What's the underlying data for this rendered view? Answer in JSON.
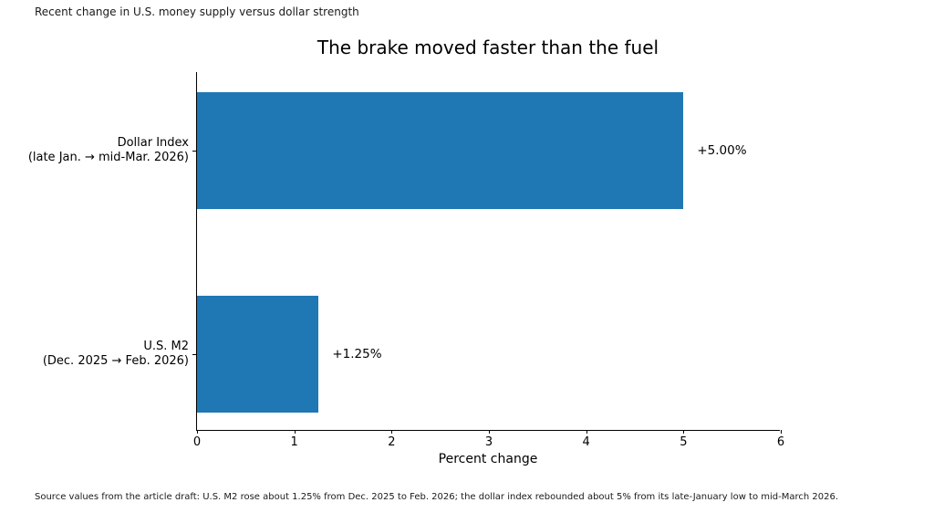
{
  "annotation": "Recent change in U.S. money supply versus dollar strength",
  "source_note": "Source values from the article draft: U.S. M2 rose about 1.25% from Dec. 2025 to Feb. 2026; the dollar index rebounded about 5% from its late-January low to mid-March 2026.",
  "chart_data": {
    "type": "bar",
    "orientation": "horizontal",
    "title": "The brake moved faster than the fuel",
    "xlabel": "Percent change",
    "categories": [
      [
        "Dollar Index",
        "(late Jan. → mid-Mar. 2026)"
      ],
      [
        "U.S. M2",
        "(Dec. 2025 → Feb. 2026)"
      ]
    ],
    "values": [
      5.0,
      1.25
    ],
    "value_labels": [
      "+5.00%",
      "+1.25%"
    ],
    "xlim": [
      0,
      6
    ],
    "xticks": [
      "0",
      "1",
      "2",
      "3",
      "4",
      "5",
      "6"
    ],
    "bar_color": "#1f77b4",
    "grid": false,
    "legend": null
  }
}
